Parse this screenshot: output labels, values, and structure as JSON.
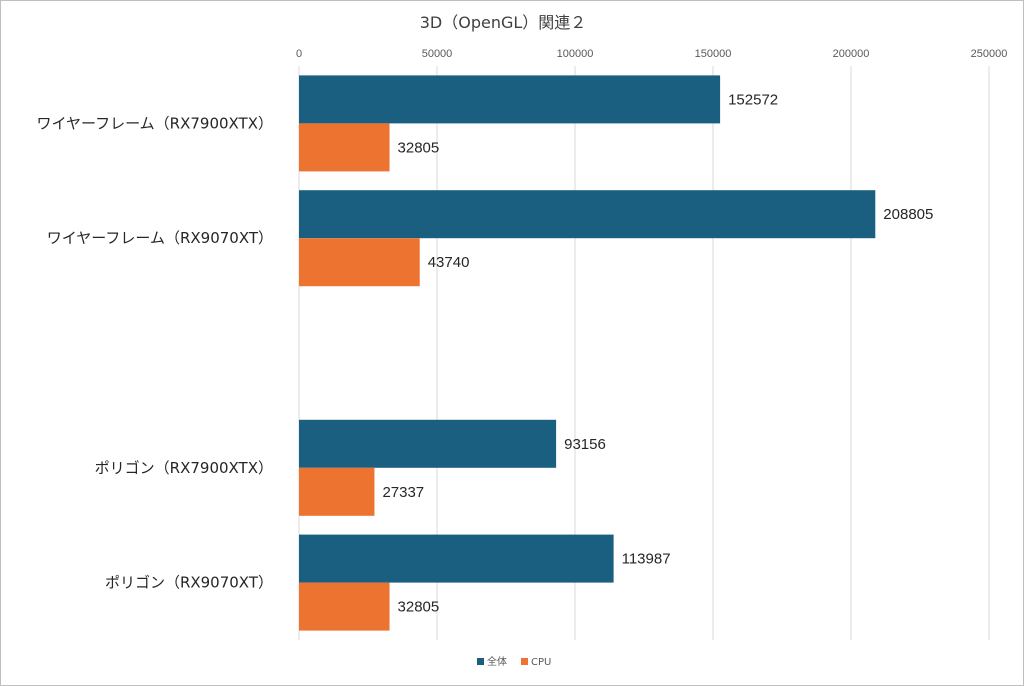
{
  "chart_data": {
    "type": "bar",
    "orientation": "horizontal",
    "title": "3D（OpenGL）関連２",
    "xlabel": "",
    "ylabel": "",
    "xlim": [
      0,
      250000
    ],
    "x_ticks": [
      "0",
      "50000",
      "100000",
      "150000",
      "200000",
      "250000"
    ],
    "x_tick_values": [
      0,
      50000,
      100000,
      150000,
      200000,
      250000
    ],
    "x_axis_position": "top",
    "grid": true,
    "legend_position": "bottom",
    "categories": [
      "ワイヤーフレーム（RX7900XTX）",
      "ワイヤーフレーム（RX9070XT）",
      "",
      "ポリゴン（RX7900XTX）",
      "ポリゴン（RX9070XT）"
    ],
    "series": [
      {
        "name": "全体",
        "color": "#1a5e80",
        "values": [
          152572,
          208805,
          null,
          93156,
          113987
        ]
      },
      {
        "name": "CPU",
        "color": "#ed7330",
        "values": [
          32805,
          43740,
          null,
          27337,
          32805
        ]
      }
    ],
    "data_labels": true
  }
}
